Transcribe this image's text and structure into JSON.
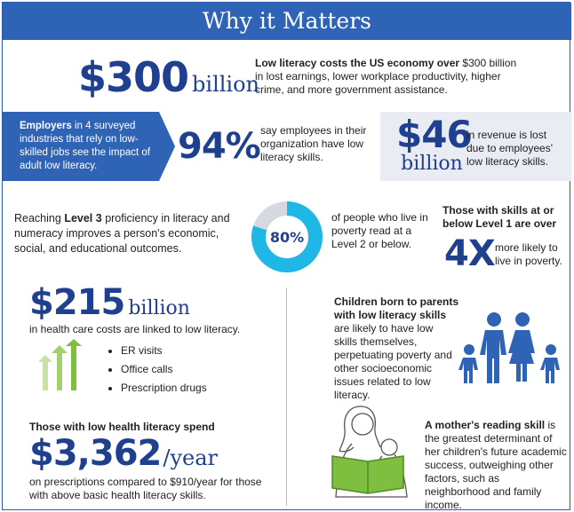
{
  "header": {
    "title": "Why it Matters"
  },
  "stat_300": {
    "amount": "$300",
    "unit": "billion",
    "text_bold": "Low literacy costs the US economy over",
    "text_rest": "$300 billion in lost earnings, lower workplace productivity, higher crime, and more government assistance."
  },
  "employers": {
    "bold": "Employers",
    "rest": "in 4 surveyed industries that rely on low-skilled jobs see the impact of adult low literacy."
  },
  "stat_94": {
    "value": "94%",
    "text": "say employees in their organization have low literacy skills."
  },
  "stat_46": {
    "amount": "$46",
    "unit": "billion",
    "text": "in revenue is lost due to employees' low literacy skills."
  },
  "level3": {
    "pre": "Reaching",
    "bold": "Level 3",
    "rest": "proficiency in literacy and numeracy improves a person's economic, social, and educational outcomes."
  },
  "stat_80": {
    "value": "80%",
    "fraction": 0.8,
    "text": "of people who live in poverty read at a Level 2 or below."
  },
  "stat_4x": {
    "heading": "Those with skills at or below Level 1 are over",
    "value": "4X",
    "text": "more likely to live in poverty."
  },
  "stat_215": {
    "amount": "$215",
    "unit": "billion",
    "text": "in health care costs are linked to low literacy.",
    "items": [
      "ER visits",
      "Office calls",
      "Prescription drugs"
    ]
  },
  "children": {
    "bold": "Children born to parents with low literacy skills",
    "rest": "are likely to have low skills themselves, perpetuating poverty and other socioeconomic issues related to low literacy."
  },
  "stat_3362": {
    "heading": "Those with low health literacy spend",
    "amount": "$3,362",
    "unit": "/year",
    "text": "on prescriptions compared to $910/year for those with above basic health literacy skills."
  },
  "mother": {
    "bold": "A mother's reading skill",
    "rest": "is the greatest determinant of her children's future academic success, outweighing other factors, such as neighborhood and family income."
  },
  "colors": {
    "primary": "#2f63b6",
    "dark_blue": "#1f3f8f",
    "cyan": "#1fb7e6",
    "green": "#7fbf3f",
    "grey_panel": "#e9ecf3"
  }
}
